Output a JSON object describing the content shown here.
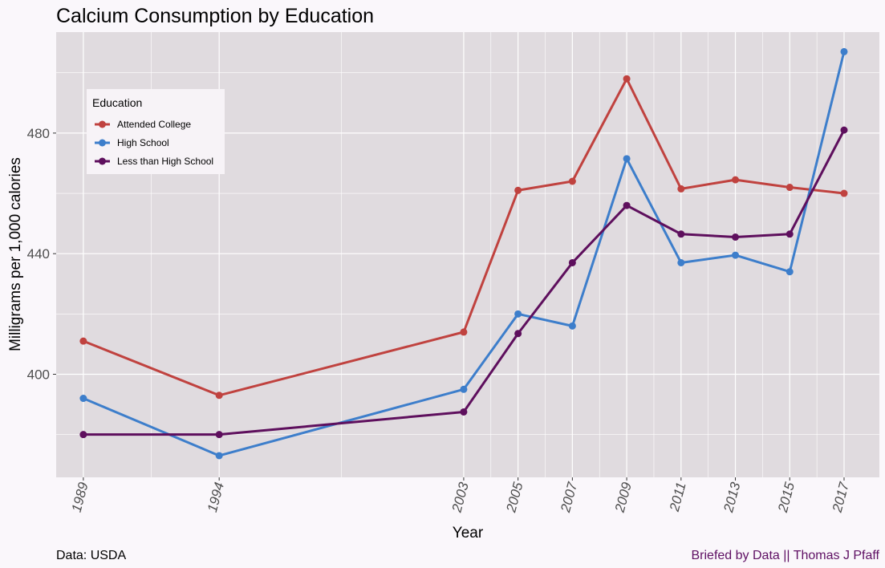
{
  "chart_data": {
    "type": "line",
    "title": "Calcium Consumption by Education",
    "xlabel": "Year",
    "ylabel": "Milligrams per 1,000 calories",
    "x": [
      1989,
      1994,
      2003,
      2005,
      2007,
      2009,
      2011,
      2013,
      2015,
      2017
    ],
    "x_ticks": [
      "1989",
      "1994",
      "2003",
      "2005",
      "2007",
      "2009",
      "2011",
      "2013",
      "2015",
      "2017"
    ],
    "y_ticks": [
      400,
      440,
      480
    ],
    "xlim": [
      1988,
      2018.3
    ],
    "ylim": [
      365.8,
      513.5
    ],
    "grid": true,
    "legend": {
      "title": "Education",
      "position": "top-left"
    },
    "series": [
      {
        "name": "Attended College",
        "color": "#c0423f",
        "values": [
          411,
          393,
          414,
          461,
          464,
          498,
          461.5,
          464.5,
          462,
          460
        ]
      },
      {
        "name": "High School",
        "color": "#3d7ecb",
        "values": [
          392,
          373,
          395,
          420,
          416,
          471.5,
          437,
          439.5,
          434,
          507
        ]
      },
      {
        "name": "Less than High School",
        "color": "#5e0f5d",
        "values": [
          380,
          380,
          387.5,
          413.5,
          437,
          456,
          446.5,
          445.5,
          446.5,
          481
        ]
      }
    ]
  },
  "footer": {
    "source": "Data: USDA",
    "credit": "Briefed by Data || Thomas J Pfaff"
  }
}
